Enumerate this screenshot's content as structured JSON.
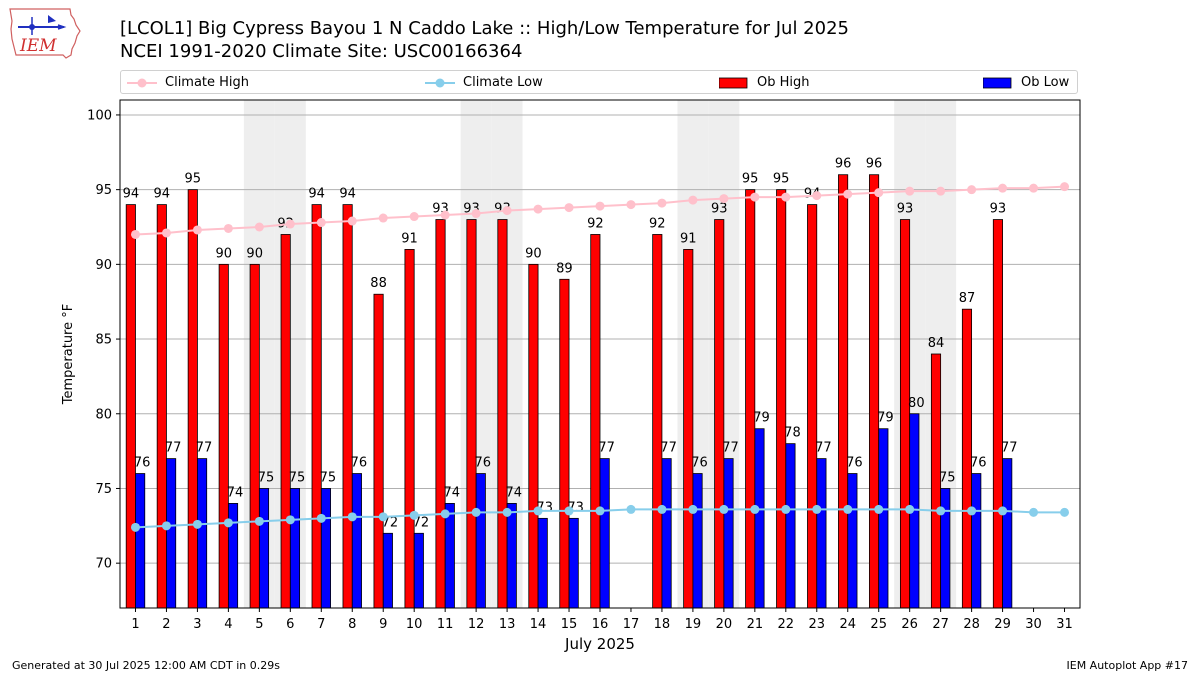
{
  "header": {
    "title": "[LCOL1] Big Cypress Bayou 1 N Caddo Lake :: High/Low Temperature for Jul 2025",
    "subtitle": "NCEI 1991-2020 Climate Site: USC00166364",
    "logo_text": "IEM"
  },
  "legend": {
    "climate_high": "Climate High",
    "climate_low": "Climate Low",
    "ob_high": "Ob High",
    "ob_low": "Ob Low"
  },
  "footer": {
    "generated": "Generated at 30 Jul 2025 12:00 AM CDT in 0.29s",
    "app": "IEM Autoplot App #17"
  },
  "colors": {
    "ob_high": "#ff0000",
    "ob_low": "#0000ff",
    "climate_high": "#ffc0cb",
    "climate_low": "#87ceeb",
    "weekend_band": "#eeeeee",
    "grid": "#b0b0b0"
  },
  "chart_data": {
    "type": "bar",
    "xlabel": "July 2025",
    "ylabel": "Temperature °F",
    "ylim": [
      67,
      101
    ],
    "xlim": [
      0.5,
      31.5
    ],
    "yticks": [
      70,
      75,
      80,
      85,
      90,
      95,
      100
    ],
    "grid": true,
    "legend_position": "top",
    "categories": [
      "1",
      "2",
      "3",
      "4",
      "5",
      "6",
      "7",
      "8",
      "9",
      "10",
      "11",
      "12",
      "13",
      "14",
      "15",
      "16",
      "17",
      "18",
      "19",
      "20",
      "21",
      "22",
      "23",
      "24",
      "25",
      "26",
      "27",
      "28",
      "29",
      "30",
      "31"
    ],
    "weekend_days": [
      5,
      6,
      12,
      13,
      19,
      20,
      26,
      27
    ],
    "series": [
      {
        "name": "Ob High",
        "kind": "bar",
        "values": [
          94,
          94,
          95,
          90,
          90,
          92,
          94,
          94,
          88,
          91,
          93,
          93,
          93,
          90,
          89,
          92,
          null,
          92,
          91,
          93,
          95,
          95,
          94,
          96,
          96,
          93,
          84,
          87,
          93,
          null,
          null
        ],
        "labels": [
          "94",
          "94",
          "95",
          "90",
          "90",
          "92",
          "94",
          "94",
          "88",
          "91",
          "93",
          "93",
          "93",
          "90",
          "89",
          "92",
          "",
          "92",
          "91",
          "93",
          "95",
          "95",
          "94",
          "96",
          "96",
          "93",
          "84",
          "87",
          "93",
          "",
          ""
        ]
      },
      {
        "name": "Ob Low",
        "kind": "bar",
        "values": [
          76,
          77,
          77,
          74,
          75,
          75,
          75,
          76,
          72,
          72,
          74,
          76,
          74,
          73,
          73,
          77,
          null,
          77,
          76,
          77,
          79,
          78,
          77,
          76,
          79,
          80,
          75,
          76,
          77,
          null,
          null
        ],
        "labels": [
          "76",
          "77",
          "77",
          "74",
          "75",
          "75",
          "75",
          "76",
          "72",
          "72",
          "74",
          "76",
          "74",
          "73",
          "73",
          "77",
          "",
          "77",
          "76",
          "77",
          "79",
          "78",
          "77",
          "76",
          "79",
          "80",
          "75",
          "76",
          "77",
          "",
          ""
        ]
      },
      {
        "name": "Climate High",
        "kind": "line",
        "values": [
          92.0,
          92.1,
          92.3,
          92.4,
          92.5,
          92.7,
          92.8,
          92.9,
          93.1,
          93.2,
          93.3,
          93.4,
          93.6,
          93.7,
          93.8,
          93.9,
          94.0,
          94.1,
          94.3,
          94.4,
          94.5,
          94.5,
          94.6,
          94.7,
          94.8,
          94.9,
          94.9,
          95.0,
          95.1,
          95.1,
          95.2
        ]
      },
      {
        "name": "Climate Low",
        "kind": "line",
        "values": [
          72.4,
          72.5,
          72.6,
          72.7,
          72.8,
          72.9,
          73.0,
          73.1,
          73.1,
          73.2,
          73.3,
          73.4,
          73.4,
          73.5,
          73.5,
          73.5,
          73.6,
          73.6,
          73.6,
          73.6,
          73.6,
          73.6,
          73.6,
          73.6,
          73.6,
          73.6,
          73.5,
          73.5,
          73.5,
          73.4,
          73.4
        ]
      }
    ]
  }
}
